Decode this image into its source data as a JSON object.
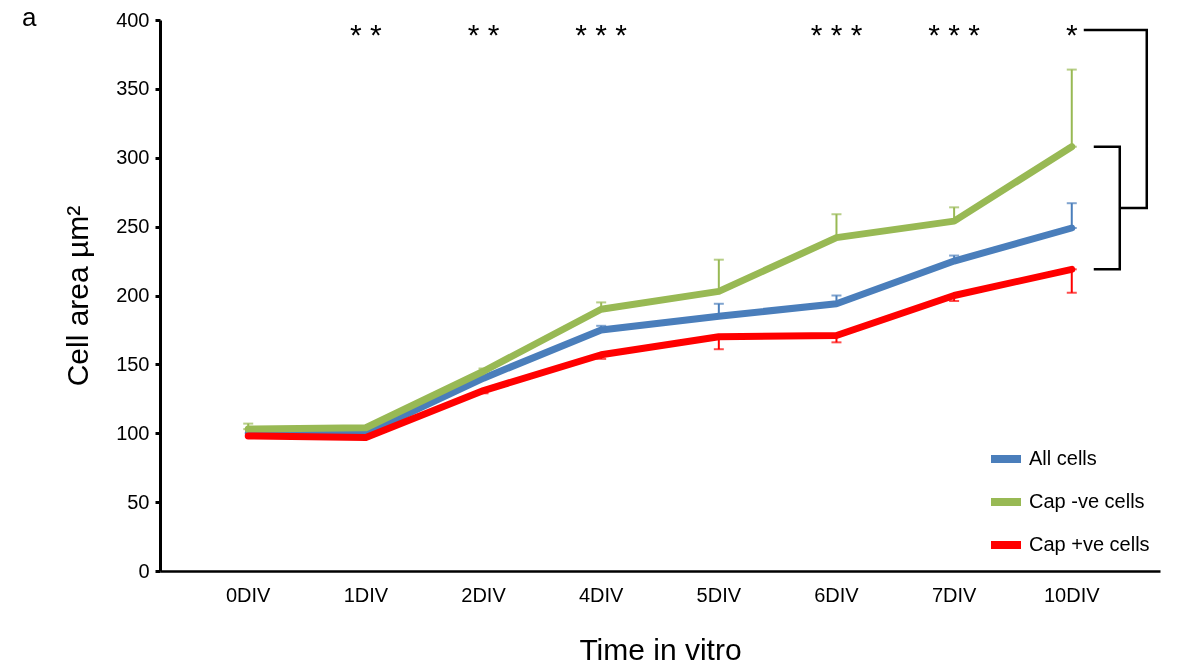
{
  "chart_data": {
    "type": "line",
    "xlabel": "Time in vitro",
    "ylabel": "Cell area µm²",
    "categories": [
      "0DIV",
      "1DIV",
      "2DIV",
      "4DIV",
      "5DIV",
      "6DIV",
      "7DIV",
      "10DIV"
    ],
    "ylim": [
      0,
      400
    ],
    "yticks": [
      0,
      50,
      100,
      150,
      200,
      250,
      300,
      350,
      400
    ],
    "series": [
      {
        "name": "All cells",
        "color": "#4a7ebb",
        "values": [
          100,
          100,
          140,
          175,
          185,
          194,
          225,
          249
        ],
        "errors": [
          null,
          null,
          null,
          [
            175,
            178
          ],
          [
            185,
            194
          ],
          [
            194,
            200
          ],
          [
            225,
            229
          ],
          [
            249,
            267
          ]
        ]
      },
      {
        "name": "Cap -ve cells",
        "color": "#98b954",
        "values": [
          103,
          104,
          145,
          190,
          203,
          242,
          254,
          308
        ],
        "errors": [
          [
            103,
            107
          ],
          null,
          [
            145,
            147
          ],
          [
            190,
            195
          ],
          [
            203,
            226
          ],
          [
            242,
            259
          ],
          [
            254,
            264
          ],
          [
            308,
            364
          ]
        ]
      },
      {
        "name": "Cap +ve cells",
        "color": "#ff0000",
        "values": [
          98,
          97,
          131,
          157,
          170,
          171,
          200,
          219
        ],
        "errors": [
          null,
          null,
          [
            129,
            131
          ],
          [
            154,
            157
          ],
          [
            161,
            170
          ],
          [
            166,
            171
          ],
          [
            196,
            200
          ],
          [
            202,
            219
          ]
        ]
      }
    ],
    "annotations": [
      "a",
      "* *",
      "* *",
      "* * *",
      "* * *",
      "* * *",
      "*"
    ],
    "legend": "bottom right",
    "grid": false,
    "marker": "none",
    "line_style": "solid"
  }
}
